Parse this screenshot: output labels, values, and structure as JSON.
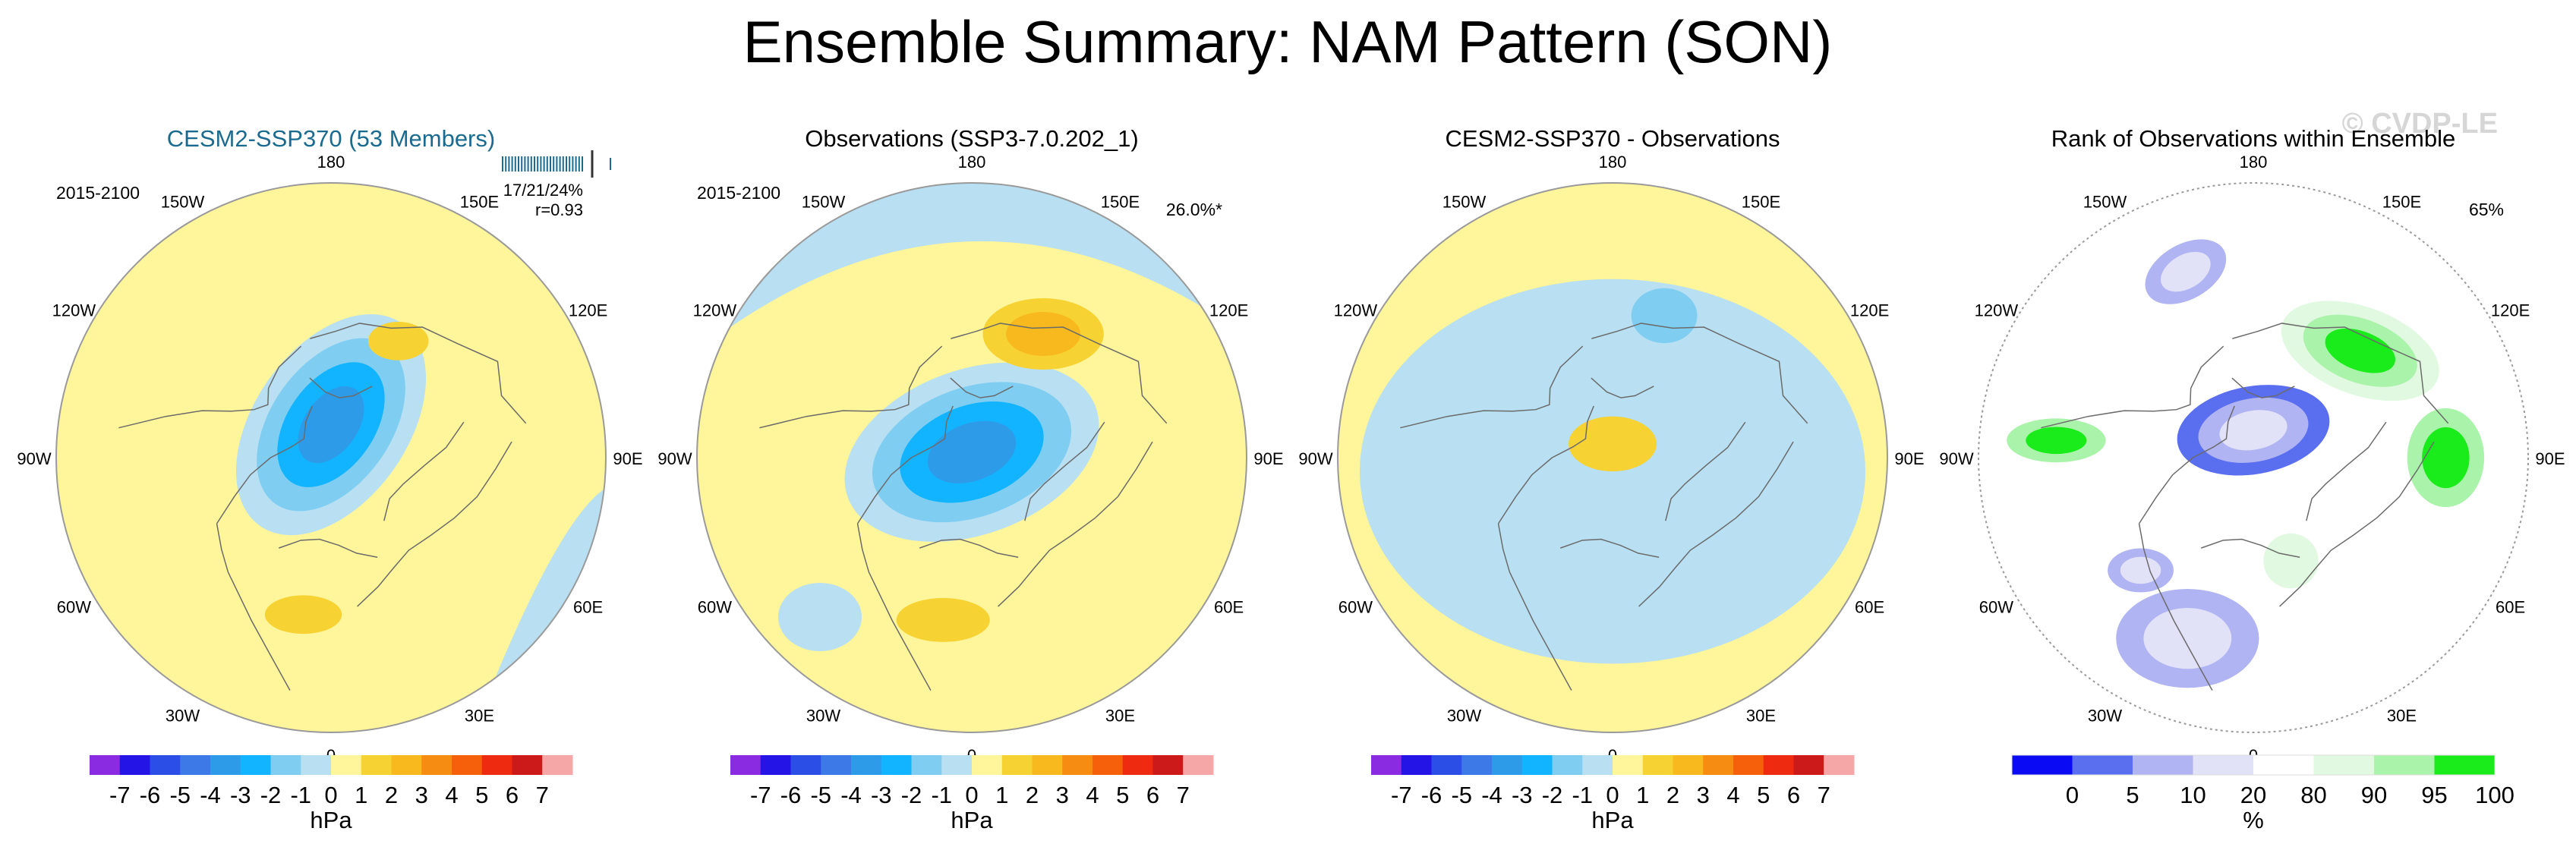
{
  "title": "Ensemble Summary: NAM Pattern (SON)",
  "watermark": "© CVDP-LE",
  "colors": {
    "land_line": "#6b6b6b",
    "title_blue": "#1a6b8f"
  },
  "longitude_labels": [
    "180",
    "150E",
    "120E",
    "90E",
    "60E",
    "30E",
    "0",
    "30W",
    "60W",
    "90W",
    "120W",
    "150W"
  ],
  "chart_data": [
    {
      "type": "heatmap",
      "name": "ensemble-mean",
      "title": "CESM2-SSP370 (53 Members)",
      "title_color": "#1a6b8f",
      "period": "2015-2100",
      "stat_text": "17/21/24%",
      "corr_text": "r=0.93",
      "pct_text": "",
      "units": "hPa",
      "anomalies": [
        {
          "name": "pole",
          "lon": 180,
          "r": 0.12,
          "rx": 0.45,
          "ry": 0.28,
          "rot": -55,
          "levels": [
            -1,
            -2,
            -3,
            -4
          ]
        },
        {
          "name": "pacific",
          "lon": 150,
          "r": 0.49,
          "rx": 0.11,
          "ry": 0.07,
          "rot": 0,
          "levels": [
            1
          ]
        },
        {
          "name": "atlantic",
          "lon": 350,
          "r": 0.58,
          "rx": 0.14,
          "ry": 0.07,
          "rot": 0,
          "levels": [
            1
          ]
        }
      ]
    },
    {
      "type": "heatmap",
      "name": "observations",
      "title": "Observations (SSP3-7.0.202_1)",
      "title_color": "#000000",
      "period": "2015-2100",
      "stat_text": "",
      "corr_text": "",
      "pct_text": "26.0%*",
      "units": "hPa",
      "anomalies": [
        {
          "name": "pole",
          "lon": 180,
          "r": 0.02,
          "rx": 0.48,
          "ry": 0.3,
          "rot": -20,
          "levels": [
            -1,
            -2,
            -3,
            -4
          ]
        },
        {
          "name": "pacific",
          "lon": 150,
          "r": 0.52,
          "rx": 0.22,
          "ry": 0.13,
          "rot": 0,
          "levels": [
            1,
            2
          ]
        },
        {
          "name": "atlantic",
          "lon": 350,
          "r": 0.6,
          "rx": 0.17,
          "ry": 0.08,
          "rot": 0,
          "levels": [
            1
          ]
        }
      ]
    },
    {
      "type": "heatmap",
      "name": "difference",
      "title": "CESM2-SSP370 - Observations",
      "title_color": "#000000",
      "period": "",
      "stat_text": "",
      "corr_text": "",
      "pct_text": "",
      "units": "hPa",
      "anomalies": [
        {
          "name": "wide",
          "lon": 0,
          "r": 0.05,
          "rx": 0.92,
          "ry": 0.7,
          "rot": 0,
          "levels": [
            -1
          ]
        },
        {
          "name": "pacific-blue",
          "lon": 160,
          "r": 0.55,
          "rx": 0.12,
          "ry": 0.1,
          "rot": 0,
          "levels": [
            -2
          ]
        },
        {
          "name": "pole-high",
          "lon": 180,
          "r": 0.05,
          "rx": 0.16,
          "ry": 0.1,
          "rot": 0,
          "levels": [
            1
          ]
        }
      ]
    },
    {
      "type": "heatmap",
      "name": "rank",
      "title": "Rank of Observations within Ensemble",
      "title_color": "#000000",
      "period": "",
      "stat_text": "",
      "corr_text": "",
      "pct_text": "65%",
      "units": "%",
      "anomalies": [
        {
          "name": "pole-low",
          "lon": 180,
          "r": 0.1,
          "rx": 0.28,
          "ry": 0.16,
          "rot": -10,
          "levels": [
            1,
            2,
            3
          ]
        },
        {
          "name": "pacific-high",
          "lon": 135,
          "r": 0.55,
          "rx": 0.3,
          "ry": 0.16,
          "rot": 20,
          "levels": [
            5,
            6,
            7
          ]
        },
        {
          "name": "nw-low",
          "lon": 200,
          "r": 0.72,
          "rx": 0.16,
          "ry": 0.1,
          "rot": -30,
          "levels": [
            2,
            3
          ]
        },
        {
          "name": "west-high",
          "lon": 265,
          "r": 0.72,
          "rx": 0.18,
          "ry": 0.08,
          "rot": 0,
          "levels": [
            6,
            7
          ]
        },
        {
          "name": "east-high",
          "lon": 90,
          "r": 0.7,
          "rx": 0.14,
          "ry": 0.18,
          "rot": 0,
          "levels": [
            6,
            7
          ]
        },
        {
          "name": "atlantic-low",
          "lon": 340,
          "r": 0.7,
          "rx": 0.26,
          "ry": 0.18,
          "rot": 0,
          "levels": [
            2,
            3
          ]
        },
        {
          "name": "sw-low",
          "lon": 315,
          "r": 0.58,
          "rx": 0.12,
          "ry": 0.08,
          "rot": 0,
          "levels": [
            2,
            3
          ]
        },
        {
          "name": "east-green",
          "lon": 20,
          "r": 0.4,
          "rx": 0.1,
          "ry": 0.1,
          "rot": 0,
          "levels": [
            5
          ]
        }
      ]
    }
  ],
  "colorbars": {
    "pressure": {
      "labels": [
        "-7",
        "-6",
        "-5",
        "-4",
        "-3",
        "-2",
        "-1",
        "0",
        "1",
        "2",
        "3",
        "4",
        "5",
        "6",
        "7"
      ],
      "colors": [
        "#8a2be2",
        "#2415e6",
        "#2b4fe6",
        "#3d7ae8",
        "#2e9be8",
        "#12b4ff",
        "#7fcef2",
        "#b8dff2",
        "#fff59a",
        "#f7d233",
        "#f7b91d",
        "#f78c12",
        "#f7600a",
        "#ee2a10",
        "#cc1a1a",
        "#f5a7a7"
      ],
      "units": "hPa"
    },
    "rank": {
      "labels": [
        "0",
        "5",
        "10",
        "20",
        "80",
        "90",
        "95",
        "100"
      ],
      "colors": [
        "#0a0af5",
        "#5a6ef0",
        "#b0b4f2",
        "#e1e1f7",
        "#ffffff",
        "#e1f9e1",
        "#aaf3aa",
        "#1aeb1a"
      ],
      "units": "%"
    }
  }
}
